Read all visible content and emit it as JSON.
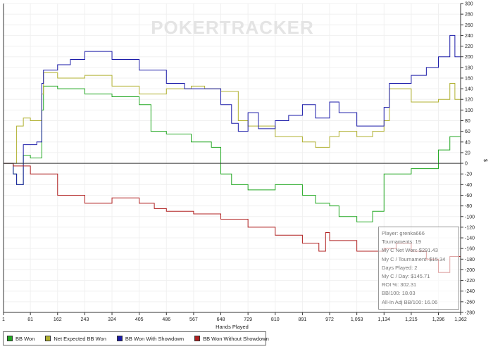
{
  "chart_data": {
    "type": "line",
    "title": "",
    "watermark": "POKERTRACKER",
    "xlabel": "Hands Played",
    "ylabel": "$",
    "xlim": [
      1,
      1362
    ],
    "ylim": [
      -280,
      300
    ],
    "x_ticks": [
      "1",
      "81",
      "162",
      "243",
      "324",
      "405",
      "486",
      "567",
      "648",
      "729",
      "810",
      "891",
      "972",
      "1,053",
      "1,134",
      "1,215",
      "1,296",
      "1,362"
    ],
    "x_tick_values": [
      1,
      81,
      162,
      243,
      324,
      405,
      486,
      567,
      648,
      729,
      810,
      891,
      972,
      1053,
      1134,
      1215,
      1296,
      1362
    ],
    "y_ticks": [
      300,
      280,
      260,
      240,
      220,
      200,
      180,
      160,
      140,
      120,
      100,
      80,
      60,
      40,
      20,
      0,
      -20,
      -40,
      -60,
      -80,
      -100,
      -120,
      -140,
      -160,
      -180,
      -200,
      -220,
      -240,
      -260,
      -280
    ],
    "legend_position": "bottom-left",
    "series": [
      {
        "name": "BB Won",
        "color": "#22a822",
        "x": [
          1,
          30,
          40,
          60,
          81,
          115,
          120,
          162,
          243,
          324,
          405,
          440,
          486,
          560,
          620,
          648,
          680,
          729,
          810,
          891,
          930,
          972,
          1000,
          1053,
          1100,
          1134,
          1215,
          1296,
          1330,
          1362
        ],
        "y": [
          0,
          -20,
          -40,
          15,
          10,
          100,
          145,
          140,
          130,
          125,
          110,
          60,
          55,
          40,
          30,
          -20,
          -40,
          -50,
          -40,
          -60,
          -75,
          -80,
          -100,
          -110,
          -90,
          -20,
          -10,
          25,
          50,
          15
        ]
      },
      {
        "name": "Net Expected BB Won",
        "color": "#b0b030",
        "x": [
          1,
          30,
          40,
          60,
          81,
          115,
          120,
          162,
          243,
          324,
          405,
          486,
          560,
          600,
          648,
          700,
          729,
          810,
          891,
          930,
          972,
          1000,
          1053,
          1100,
          1134,
          1150,
          1215,
          1296,
          1330,
          1345,
          1362
        ],
        "y": [
          0,
          0,
          70,
          85,
          80,
          130,
          170,
          160,
          165,
          145,
          130,
          140,
          145,
          140,
          135,
          80,
          70,
          50,
          40,
          30,
          50,
          60,
          50,
          60,
          80,
          140,
          115,
          120,
          150,
          120,
          115
        ]
      },
      {
        "name": "BB Won With Showdown",
        "color": "#1a1aa8",
        "x": [
          1,
          30,
          40,
          60,
          100,
          115,
          120,
          162,
          200,
          243,
          300,
          324,
          405,
          486,
          540,
          600,
          648,
          680,
          700,
          729,
          760,
          810,
          850,
          891,
          930,
          972,
          1000,
          1053,
          1100,
          1134,
          1150,
          1215,
          1260,
          1296,
          1330,
          1345,
          1362
        ],
        "y": [
          0,
          -20,
          -40,
          35,
          40,
          150,
          175,
          185,
          195,
          210,
          210,
          195,
          175,
          150,
          140,
          140,
          110,
          75,
          60,
          95,
          65,
          80,
          90,
          110,
          85,
          115,
          95,
          70,
          70,
          105,
          150,
          165,
          180,
          200,
          240,
          200,
          170
        ]
      },
      {
        "name": "BB Won Without Showdown",
        "color": "#b02020",
        "x": [
          1,
          30,
          50,
          81,
          162,
          243,
          324,
          405,
          450,
          486,
          567,
          648,
          729,
          810,
          891,
          940,
          960,
          972,
          1053,
          1100,
          1134,
          1170,
          1215,
          1260,
          1296,
          1330,
          1362
        ],
        "y": [
          0,
          -5,
          -5,
          -20,
          -60,
          -75,
          -65,
          -75,
          -85,
          -90,
          -95,
          -105,
          -120,
          -135,
          -150,
          -165,
          -130,
          -145,
          -165,
          -165,
          -160,
          -150,
          -165,
          -180,
          -205,
          -175,
          -170
        ]
      }
    ]
  },
  "info": {
    "player": "Player: grenka666",
    "tournaments": "Tournaments: 19",
    "net_won": "My C Net Won: $291.43",
    "per_tournament": "My C / Tournament: $15.34",
    "days_played": "Days Played: 2",
    "per_day": "My C / Day: $145.71",
    "roi": "ROI %: 302.31",
    "bb100": "BB/100: 18.03",
    "allin_bb100": "All-In Adj BB/100: 16.06"
  }
}
